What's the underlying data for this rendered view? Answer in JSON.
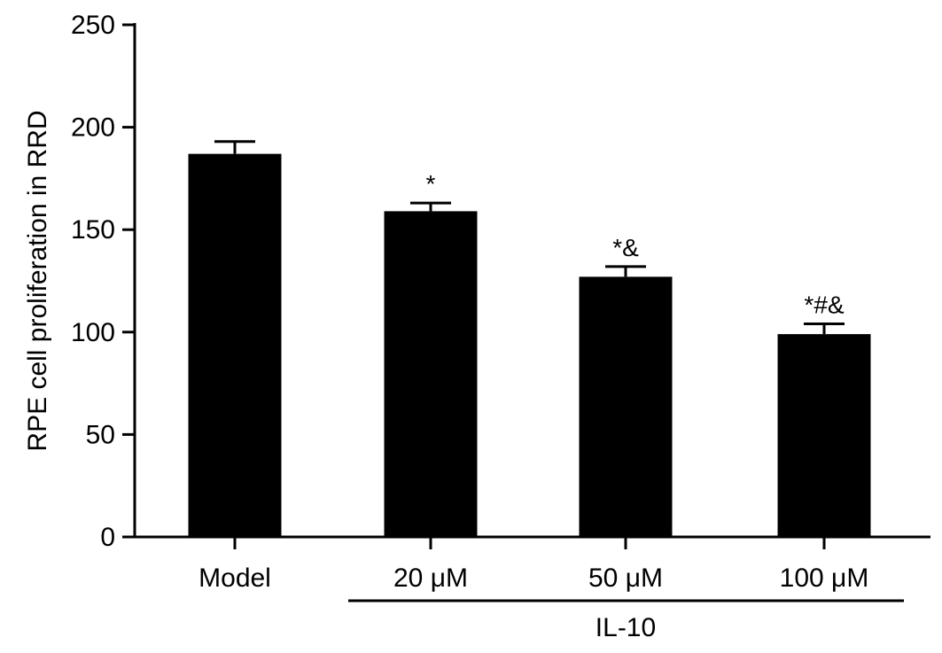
{
  "chart_data": {
    "type": "bar",
    "title": "",
    "ylabel": "RPE cell proliferation in RRD",
    "xlabel": "",
    "categories": [
      "Model",
      "20 μM",
      "50 μM",
      "100 μM"
    ],
    "values": [
      187,
      159,
      127,
      99
    ],
    "error": [
      6,
      4,
      5,
      5
    ],
    "significance": [
      "",
      "*",
      "*&",
      "*#&"
    ],
    "ylim": [
      0,
      250
    ],
    "yticks": [
      "0",
      "50",
      "100",
      "150",
      "200",
      "250"
    ],
    "group_label": "IL-10",
    "grid": false,
    "legend": "none",
    "bar_color": "#000000"
  }
}
